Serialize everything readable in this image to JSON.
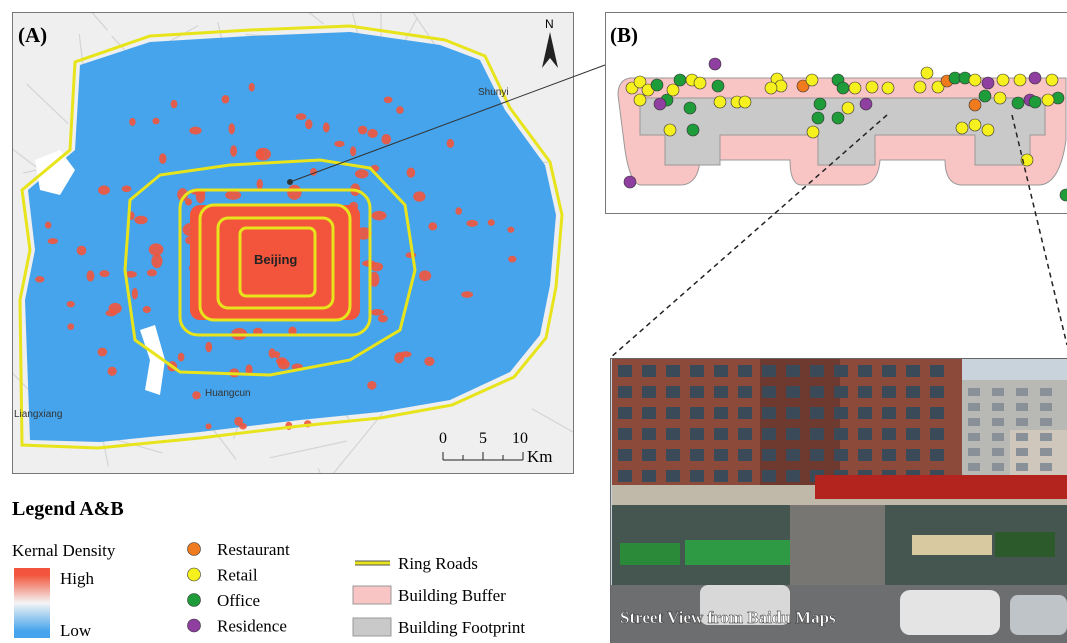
{
  "panel_a": {
    "label": "(A)",
    "north": "N",
    "places": [
      "Shunyi",
      "Beijing",
      "Huangcun",
      "Liangxiang"
    ],
    "scale": {
      "ticks": [
        0,
        5,
        10
      ],
      "unit": "Km"
    }
  },
  "panel_b": {
    "label": "(B)"
  },
  "street_view": {
    "caption": "Street View from Baidu Maps"
  },
  "legend": {
    "title": "Legend A&B",
    "density": {
      "title": "Kernal Density",
      "high": "High",
      "low": "Low",
      "high_color": "#f2553c",
      "low_color": "#45a4ec"
    },
    "poi": [
      {
        "label": "Restaurant",
        "color": "#f07b1e"
      },
      {
        "label": "Retail",
        "color": "#f5f01e"
      },
      {
        "label": "Office",
        "color": "#1f9c3a"
      },
      {
        "label": "Residence",
        "color": "#8e3fa0"
      }
    ],
    "layers": [
      {
        "label": "Ring Roads",
        "color": "#e8e41c"
      },
      {
        "label": "Building Buffer",
        "color": "#f9c4c4"
      },
      {
        "label": "Building Footprint",
        "color": "#c9c9c9"
      }
    ]
  }
}
